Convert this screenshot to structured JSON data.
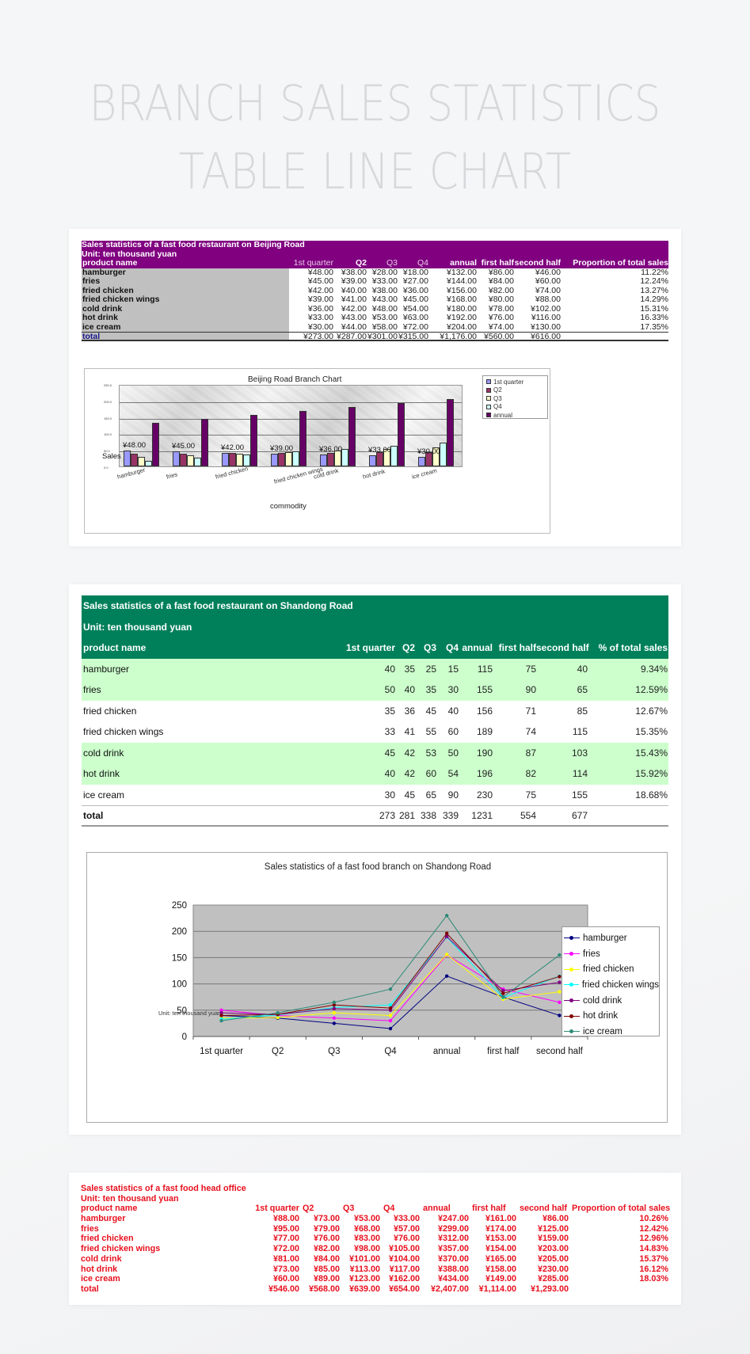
{
  "page": {
    "title_line1": "BRANCH SALES STATISTICS",
    "title_line2": "TABLE LINE CHART"
  },
  "beijing": {
    "title": "Sales statistics of a fast food restaurant on Beijing Road",
    "unit": "Unit: ten thousand yuan",
    "headers": [
      "product name",
      "1st quarter",
      "Q2",
      "Q3",
      "Q4",
      "annual",
      "first half",
      "second half",
      "Proportion of total sales"
    ],
    "rows": [
      [
        "hamburger",
        "¥48.00",
        "¥38.00",
        "¥28.00",
        "¥18.00",
        "¥132.00",
        "¥86.00",
        "¥46.00",
        "11.22%"
      ],
      [
        "fries",
        "¥45.00",
        "¥39.00",
        "¥33.00",
        "¥27.00",
        "¥144.00",
        "¥84.00",
        "¥60.00",
        "12.24%"
      ],
      [
        "fried chicken",
        "¥42.00",
        "¥40.00",
        "¥38.00",
        "¥36.00",
        "¥156.00",
        "¥82.00",
        "¥74.00",
        "13.27%"
      ],
      [
        "fried chicken wings",
        "¥39.00",
        "¥41.00",
        "¥43.00",
        "¥45.00",
        "¥168.00",
        "¥80.00",
        "¥88.00",
        "14.29%"
      ],
      [
        "cold drink",
        "¥36.00",
        "¥42.00",
        "¥48.00",
        "¥54.00",
        "¥180.00",
        "¥78.00",
        "¥102.00",
        "15.31%"
      ],
      [
        "hot drink",
        "¥33.00",
        "¥43.00",
        "¥53.00",
        "¥63.00",
        "¥192.00",
        "¥76.00",
        "¥116.00",
        "16.33%"
      ],
      [
        "ice cream",
        "¥30.00",
        "¥44.00",
        "¥58.00",
        "¥72.00",
        "¥204.00",
        "¥74.00",
        "¥130.00",
        "17.35%"
      ]
    ],
    "total": [
      "total",
      "¥273.00",
      "¥287.00",
      "¥301.00",
      "¥315.00",
      "¥1,176.00",
      "¥560.00",
      "¥616.00",
      ""
    ],
    "colors": {
      "header_bg": "#800080",
      "name_col_bg": "#c0c0c0"
    }
  },
  "shandong": {
    "title": "Sales statistics of a fast food restaurant on Shandong Road",
    "unit": "Unit: ten thousand yuan",
    "headers": [
      "product name",
      "1st quarter",
      "Q2",
      "Q3",
      "Q4",
      "annual",
      "first half",
      "second half",
      "% of total sales"
    ],
    "rows": [
      [
        "hamburger",
        "40",
        "35",
        "25",
        "15",
        "115",
        "75",
        "40",
        "9.34%"
      ],
      [
        "fries",
        "50",
        "40",
        "35",
        "30",
        "155",
        "90",
        "65",
        "12.59%"
      ],
      [
        "fried chicken",
        "35",
        "36",
        "45",
        "40",
        "156",
        "71",
        "85",
        "12.67%"
      ],
      [
        "fried chicken wings",
        "33",
        "41",
        "55",
        "60",
        "189",
        "74",
        "115",
        "15.35%"
      ],
      [
        "cold drink",
        "45",
        "42",
        "53",
        "50",
        "190",
        "87",
        "103",
        "15.43%"
      ],
      [
        "hot drink",
        "40",
        "42",
        "60",
        "54",
        "196",
        "82",
        "114",
        "15.92%"
      ],
      [
        "ice cream",
        "30",
        "45",
        "65",
        "90",
        "230",
        "75",
        "155",
        "18.68%"
      ]
    ],
    "total": [
      "total",
      "273",
      "281",
      "338",
      "339",
      "1231",
      "554",
      "677",
      ""
    ],
    "colors": {
      "header_bg": "#00805a",
      "highlight_bg": "#ccffcc"
    }
  },
  "head_office": {
    "title": "Sales statistics of a fast food head office",
    "unit": "Unit: ten thousand yuan",
    "headers": [
      "product name",
      "1st quarter",
      "Q2",
      "Q3",
      "Q4",
      "annual",
      "first half",
      "second half",
      "Proportion of total sales"
    ],
    "rows": [
      [
        "hamburger",
        "¥88.00",
        "¥73.00",
        "¥53.00",
        "¥33.00",
        "¥247.00",
        "¥161.00",
        "¥86.00",
        "10.26%"
      ],
      [
        "fries",
        "¥95.00",
        "¥79.00",
        "¥68.00",
        "¥57.00",
        "¥299.00",
        "¥174.00",
        "¥125.00",
        "12.42%"
      ],
      [
        "fried chicken",
        "¥77.00",
        "¥76.00",
        "¥83.00",
        "¥76.00",
        "¥312.00",
        "¥153.00",
        "¥159.00",
        "12.96%"
      ],
      [
        "fried chicken wings",
        "¥72.00",
        "¥82.00",
        "¥98.00",
        "¥105.00",
        "¥357.00",
        "¥154.00",
        "¥203.00",
        "14.83%"
      ],
      [
        "cold drink",
        "¥81.00",
        "¥84.00",
        "¥101.00",
        "¥104.00",
        "¥370.00",
        "¥165.00",
        "¥205.00",
        "15.37%"
      ],
      [
        "hot drink",
        "¥73.00",
        "¥85.00",
        "¥113.00",
        "¥117.00",
        "¥388.00",
        "¥158.00",
        "¥230.00",
        "16.12%"
      ],
      [
        "ice cream",
        "¥60.00",
        "¥89.00",
        "¥123.00",
        "¥162.00",
        "¥434.00",
        "¥149.00",
        "¥285.00",
        "18.03%"
      ]
    ],
    "total": [
      "total",
      "¥546.00",
      "¥568.00",
      "¥639.00",
      "¥654.00",
      "¥2,407.00",
      "¥1,114.00",
      "¥1,293.00",
      ""
    ],
    "colors": {
      "text": "#e8101e"
    }
  },
  "chart_data": [
    {
      "type": "bar",
      "title": "Beijing Road Branch Chart",
      "xlabel": "commodity",
      "ylabel": "Sales",
      "ylim": [
        0,
        250
      ],
      "yticks": [
        "0.0",
        "50.0",
        "100.0",
        "150.0",
        "200.0",
        "250.0"
      ],
      "grid": true,
      "legend_position": "right-top",
      "categories": [
        "hamburger",
        "fries",
        "fried chicken",
        "fried chicken wings",
        "cold drink",
        "hot drink",
        "ice cream"
      ],
      "series": [
        {
          "name": "1st quarter",
          "color": "#9999ff",
          "values": [
            48,
            45,
            42,
            39,
            36,
            33,
            30
          ]
        },
        {
          "name": "Q2",
          "color": "#993366",
          "values": [
            38,
            39,
            40,
            41,
            42,
            43,
            44
          ]
        },
        {
          "name": "Q3",
          "color": "#ffffcc",
          "values": [
            28,
            33,
            38,
            43,
            48,
            53,
            58
          ]
        },
        {
          "name": "Q4",
          "color": "#ccffff",
          "values": [
            18,
            27,
            36,
            45,
            54,
            63,
            72
          ]
        },
        {
          "name": "annual",
          "color": "#660066",
          "values": [
            132,
            144,
            156,
            168,
            180,
            192,
            204
          ]
        }
      ],
      "data_labels": [
        "¥48.00",
        "¥45.00",
        "¥42.00",
        "¥39.00",
        "¥36.00",
        "¥33.00",
        "¥30.00"
      ]
    },
    {
      "type": "line",
      "title": "Sales statistics of a fast food branch on Shandong Road",
      "xlabel": "",
      "ylabel": "Unit: ten thousand yuan",
      "ylim": [
        0,
        250
      ],
      "yticks": [
        "0",
        "50",
        "100",
        "150",
        "200",
        "250"
      ],
      "grid": true,
      "legend_position": "right",
      "x": [
        "1st quarter",
        "Q2",
        "Q3",
        "Q4",
        "annual",
        "first half",
        "second half"
      ],
      "series": [
        {
          "name": "hamburger",
          "color": "#000080",
          "values": [
            40,
            35,
            25,
            15,
            115,
            75,
            40
          ]
        },
        {
          "name": "fries",
          "color": "#ff00ff",
          "values": [
            50,
            40,
            35,
            30,
            155,
            90,
            65
          ]
        },
        {
          "name": "fried chicken",
          "color": "#ffff00",
          "values": [
            35,
            36,
            45,
            40,
            156,
            71,
            85
          ]
        },
        {
          "name": "fried chicken wings",
          "color": "#00ffff",
          "values": [
            33,
            41,
            55,
            60,
            189,
            74,
            115
          ]
        },
        {
          "name": "cold drink",
          "color": "#800080",
          "values": [
            45,
            42,
            53,
            50,
            190,
            87,
            103
          ]
        },
        {
          "name": "hot drink",
          "color": "#800000",
          "values": [
            40,
            42,
            60,
            54,
            196,
            82,
            114
          ]
        },
        {
          "name": "ice cream",
          "color": "#2e8b77",
          "values": [
            30,
            45,
            65,
            90,
            230,
            75,
            155
          ]
        }
      ]
    }
  ]
}
